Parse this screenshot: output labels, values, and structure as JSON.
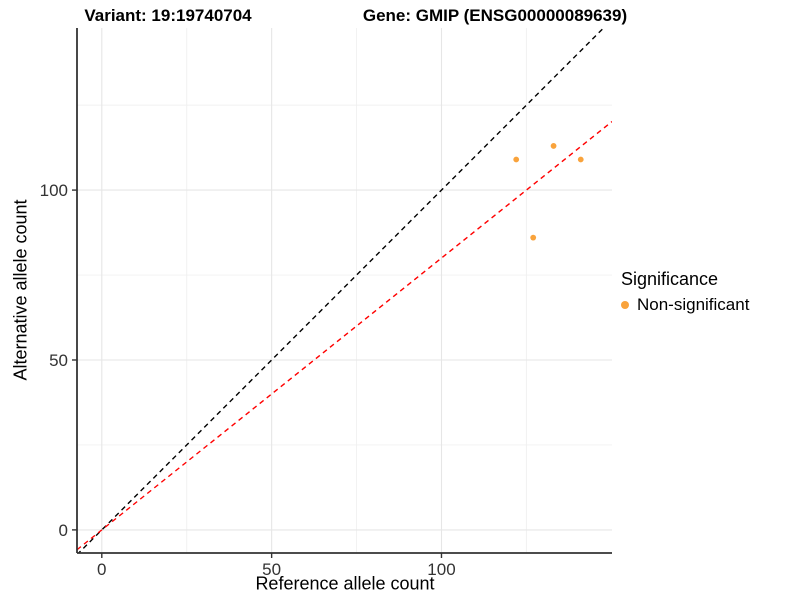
{
  "chart_data": {
    "type": "scatter",
    "title_left": "Variant: 19:19740704",
    "title_right": "Gene: GMIP (ENSG00000089639)",
    "xlabel": "Reference allele count",
    "ylabel": "Alternative allele count",
    "xlim": [
      -7.3,
      150.2
    ],
    "ylim": [
      -6.8,
      147.7
    ],
    "xticks": [
      0,
      50,
      100
    ],
    "yticks": [
      0,
      50,
      100
    ],
    "minor_gridlines": [
      25,
      75,
      125
    ],
    "grid": true,
    "points": [
      {
        "x": 122,
        "y": 109
      },
      {
        "x": 133,
        "y": 113
      },
      {
        "x": 141,
        "y": 109
      },
      {
        "x": 127,
        "y": 86
      }
    ],
    "lines": [
      {
        "name": "identity-line",
        "slope": 1,
        "intercept": 0,
        "color": "#000000",
        "style": "dashed"
      },
      {
        "name": "fit-line",
        "slope": 0.8,
        "intercept": 0,
        "color": "#FF0000",
        "style": "dashed"
      }
    ],
    "legend": {
      "title": "Significance",
      "items": [
        {
          "label": "Non-significant",
          "color": "#F9A33C"
        }
      ]
    },
    "colors": {
      "point": "#F9A33C",
      "grid_major": "#E6E6E6",
      "grid_minor": "#F0F0F0",
      "axis_line": "#333333",
      "tick_label": "#333333"
    }
  }
}
